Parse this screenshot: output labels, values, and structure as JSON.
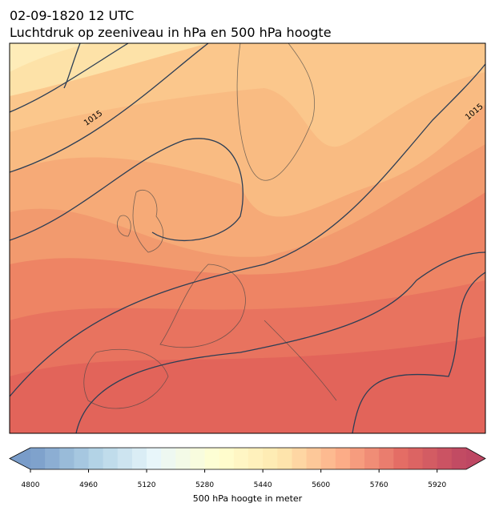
{
  "header": {
    "date": "02-09-1820 12 UTC",
    "title": "Luchtdruk op zeeniveau in hPa en 500 hPa hoogte"
  },
  "map": {
    "contour_labels": [
      1015,
      1015
    ]
  },
  "colorbar": {
    "label": "500 hPa hoogte in meter",
    "lim": [
      4800,
      6000
    ],
    "ticks": [
      4800,
      4960,
      5120,
      5280,
      5440,
      5600,
      5760,
      5920
    ]
  }
}
